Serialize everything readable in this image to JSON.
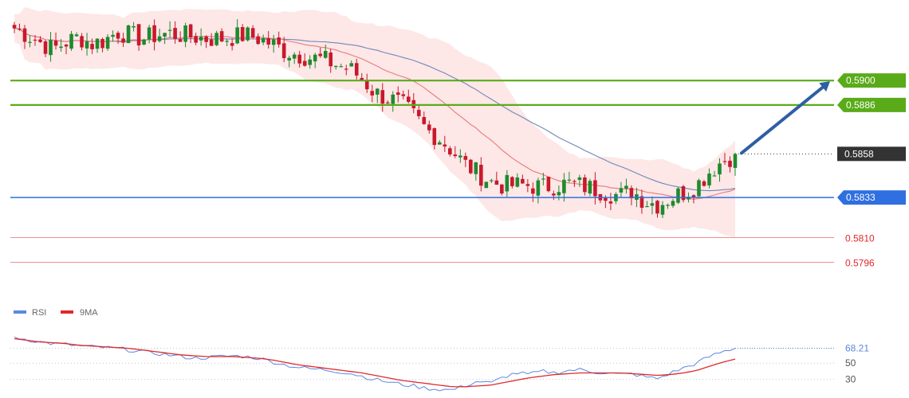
{
  "chart_data": [
    {
      "type": "candlestick",
      "title": "",
      "y_range": [
        0.5772,
        0.5937
      ],
      "colors": {
        "up": "#1e8a2e",
        "down": "#c8192b",
        "band_fill": "#fbd3d3",
        "ma_fast": "#e87b7b",
        "ma_slow": "#6f88b8",
        "arrow": "#2f5ea3"
      },
      "bollinger": {
        "color": "#fbd3d3"
      },
      "levels": [
        {
          "value": 0.59,
          "label": "0.5900",
          "kind": "resistance",
          "color": "#5aab1a"
        },
        {
          "value": 0.5886,
          "label": "0.5886",
          "kind": "resistance",
          "color": "#5aab1a"
        },
        {
          "value": 0.5858,
          "label": "0.5858",
          "kind": "current",
          "color": "#333333"
        },
        {
          "value": 0.5833,
          "label": "0.5833",
          "kind": "pivot",
          "color": "#2f6fe0"
        },
        {
          "value": 0.581,
          "label": "0.5810",
          "kind": "support",
          "color": "#e0292e"
        },
        {
          "value": 0.5796,
          "label": "0.5796",
          "kind": "support",
          "color": "#e0292e"
        }
      ],
      "target_arrow": {
        "from": 0.5858,
        "to": 0.59
      },
      "close_path": [
        0.593,
        0.5926,
        0.5922,
        0.5918,
        0.5922,
        0.5925,
        0.5921,
        0.5923,
        0.5928,
        0.5926,
        0.5924,
        0.5926,
        0.5927,
        0.5926,
        0.5925,
        0.5924,
        0.5924,
        0.5925,
        0.5926,
        0.5924,
        0.5921,
        0.5917,
        0.5915,
        0.5913,
        0.5912,
        0.5909,
        0.5907,
        0.5901,
        0.5893,
        0.589,
        0.5887,
        0.588,
        0.5872,
        0.5867,
        0.586,
        0.5852,
        0.5847,
        0.5842,
        0.584,
        0.584,
        0.584,
        0.5839,
        0.584,
        0.5841,
        0.584,
        0.5838,
        0.5836,
        0.5834,
        0.5837,
        0.5831,
        0.5829,
        0.5833,
        0.5836,
        0.584,
        0.5848,
        0.5854,
        0.5858
      ]
    },
    {
      "type": "line",
      "title": "",
      "y_ticks": [
        30,
        50
      ],
      "y_range": [
        15,
        100
      ],
      "series": [
        {
          "name": "RSI",
          "color": "#5b87e0",
          "latest_label": "68.21",
          "values": [
            82,
            79,
            76,
            74,
            73,
            71,
            70,
            69,
            68,
            66,
            64,
            62,
            60,
            58,
            56,
            57,
            58,
            59,
            58,
            56,
            52,
            48,
            45,
            43,
            42,
            40,
            38,
            34,
            30,
            27,
            24,
            22,
            19,
            18,
            17,
            22,
            28,
            25,
            33,
            38,
            36,
            40,
            38,
            41,
            42,
            39,
            38,
            36,
            37,
            33,
            31,
            38,
            44,
            50,
            58,
            64,
            68.21
          ]
        },
        {
          "name": "9MA",
          "color": "#e0292e",
          "values": [
            80,
            78,
            76,
            75,
            74,
            72,
            71,
            70,
            69,
            68,
            66,
            64,
            62,
            60,
            59,
            58,
            58,
            58,
            57,
            56,
            54,
            51,
            48,
            46,
            44,
            42,
            40,
            38,
            35,
            32,
            29,
            27,
            25,
            23,
            21,
            21,
            22,
            23,
            26,
            29,
            32,
            34,
            36,
            37,
            38,
            38,
            38,
            38,
            37,
            36,
            35,
            36,
            38,
            41,
            46,
            51,
            55
          ]
        }
      ]
    }
  ]
}
